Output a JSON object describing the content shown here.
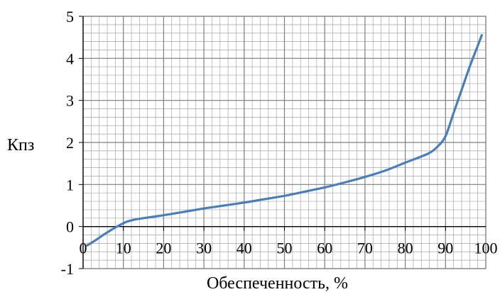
{
  "chart_data": {
    "type": "line",
    "xlabel": "Обеспеченность, %",
    "ylabel": "Кпз",
    "xlim": [
      0,
      100
    ],
    "ylim": [
      -1,
      5
    ],
    "xticks": [
      "0",
      "10",
      "20",
      "30",
      "40",
      "50",
      "60",
      "70",
      "80",
      "90",
      "100"
    ],
    "yticks": [
      "-1",
      "0",
      "1",
      "2",
      "3",
      "4",
      "5"
    ],
    "grid": true,
    "minor_x_step": 2,
    "minor_y_step": 0.2,
    "series": [
      {
        "color": "#4a7ebb",
        "x": [
          1,
          3,
          5,
          7,
          9,
          10,
          11,
          13,
          15,
          20,
          25,
          30,
          35,
          40,
          45,
          50,
          55,
          60,
          65,
          70,
          75,
          80,
          83,
          86,
          88,
          90,
          92,
          94,
          96,
          98,
          99
        ],
        "y": [
          -0.45,
          -0.33,
          -0.2,
          -0.08,
          0.03,
          0.08,
          0.12,
          0.17,
          0.2,
          0.27,
          0.35,
          0.43,
          0.5,
          0.57,
          0.65,
          0.73,
          0.83,
          0.93,
          1.05,
          1.18,
          1.33,
          1.52,
          1.63,
          1.75,
          1.9,
          2.15,
          2.7,
          3.25,
          3.8,
          4.3,
          4.55
        ]
      }
    ],
    "grid_color": "#a6a6a6",
    "axis_color": "#000000"
  }
}
